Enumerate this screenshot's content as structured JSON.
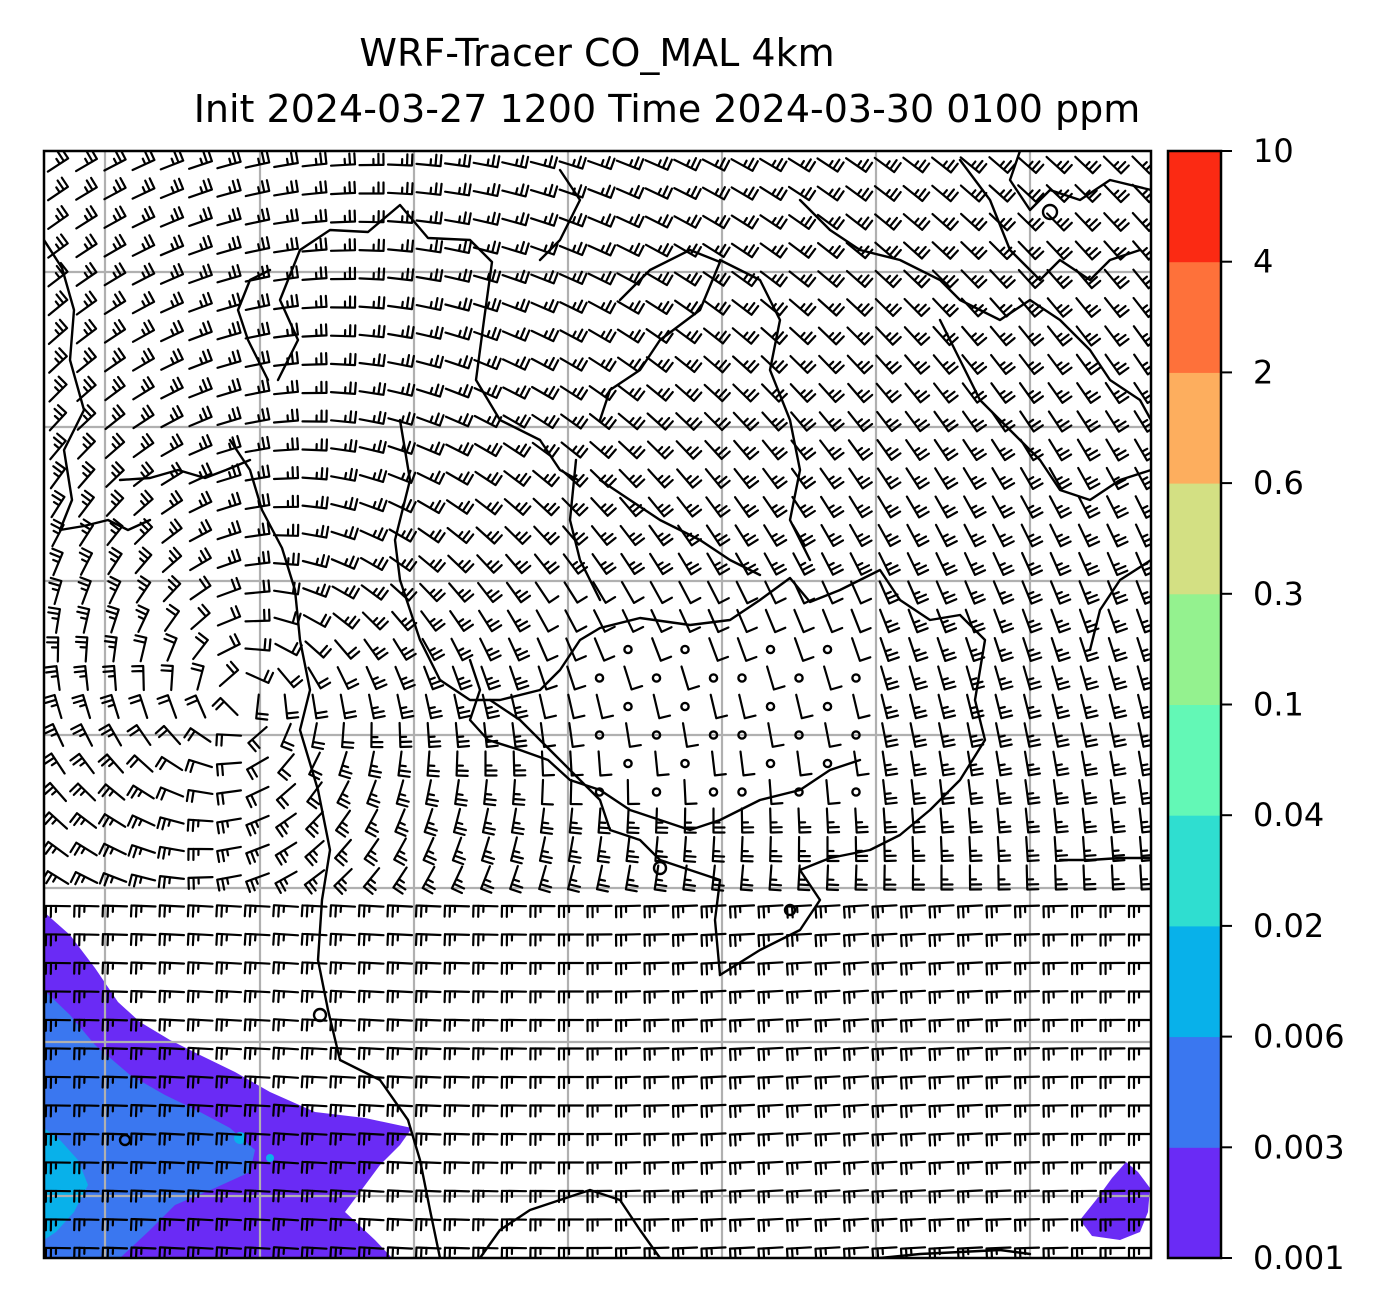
{
  "chart_data": {
    "type": "heatmap",
    "title": "WRF-Tracer CO_MAL 4km",
    "subtitle": "Init 2024-03-27 1200 Time 2024-03-30 0100 ppm",
    "xlabel": "",
    "ylabel": "",
    "grid": true,
    "overlays": [
      "coastlines",
      "gridlines",
      "wind-barbs",
      "calm-circles"
    ],
    "colorbar": {
      "orientation": "vertical",
      "location": "right",
      "levels": [
        0.001,
        0.003,
        0.006,
        0.02,
        0.04,
        0.1,
        0.3,
        0.6,
        2,
        4,
        10
      ],
      "tick_labels": [
        "0.001",
        "0.003",
        "0.006",
        "0.02",
        "0.04",
        "0.1",
        "0.3",
        "0.6",
        "2",
        "4",
        "10"
      ],
      "colors": [
        "#6a2bf5",
        "#3a77f0",
        "#08b1ea",
        "#2fded0",
        "#63f8b6",
        "#94f28f",
        "#d3e083",
        "#fdae5e",
        "#fe713a",
        "#fb2a13"
      ]
    },
    "plumes": [
      {
        "region": "lower-left",
        "dominant_level": "0.001–0.006",
        "max_level": "0.006–0.02"
      },
      {
        "region": "lower-right",
        "dominant_level": "0.001–0.003"
      }
    ]
  }
}
